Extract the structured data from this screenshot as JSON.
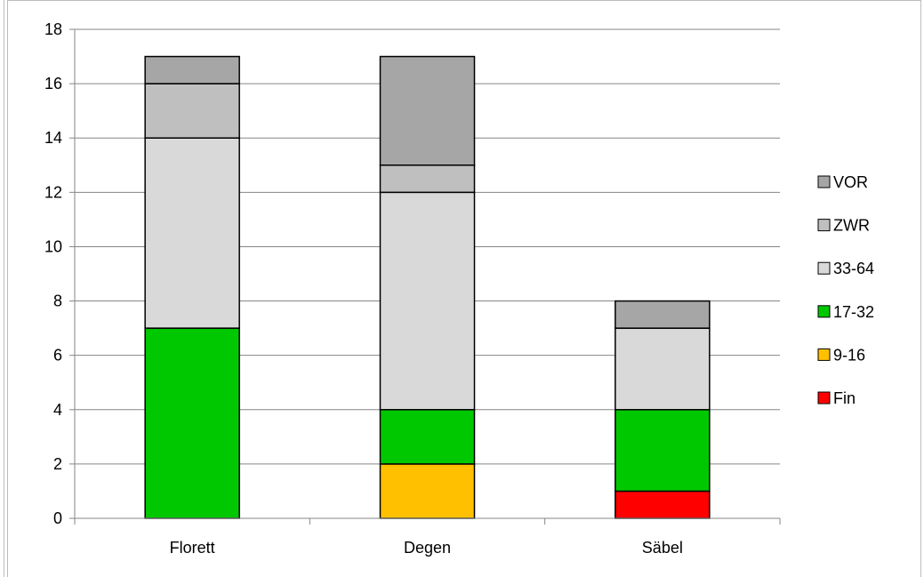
{
  "chart_data": {
    "type": "bar",
    "stacked": true,
    "categories": [
      "Florett",
      "Degen",
      "Säbel"
    ],
    "series": [
      {
        "name": "Fin",
        "values": [
          0,
          0,
          1
        ],
        "color": "#ff0000"
      },
      {
        "name": "9-16",
        "values": [
          0,
          2,
          0
        ],
        "color": "#ffc000"
      },
      {
        "name": "17-32",
        "values": [
          7,
          2,
          3
        ],
        "color": "#00c800"
      },
      {
        "name": "33-64",
        "values": [
          7,
          8,
          3
        ],
        "color": "#d9d9d9"
      },
      {
        "name": "ZWR",
        "values": [
          2,
          1,
          0
        ],
        "color": "#bfbfbf"
      },
      {
        "name": "VOR",
        "values": [
          1,
          4,
          1
        ],
        "color": "#a6a6a6"
      }
    ],
    "ylim": [
      0,
      18
    ],
    "yticks": [
      0,
      2,
      4,
      6,
      8,
      10,
      12,
      14,
      16,
      18
    ],
    "grid": true,
    "legend_position": "right",
    "legend_order": [
      "VOR",
      "ZWR",
      "33-64",
      "17-32",
      "9-16",
      "Fin"
    ]
  }
}
